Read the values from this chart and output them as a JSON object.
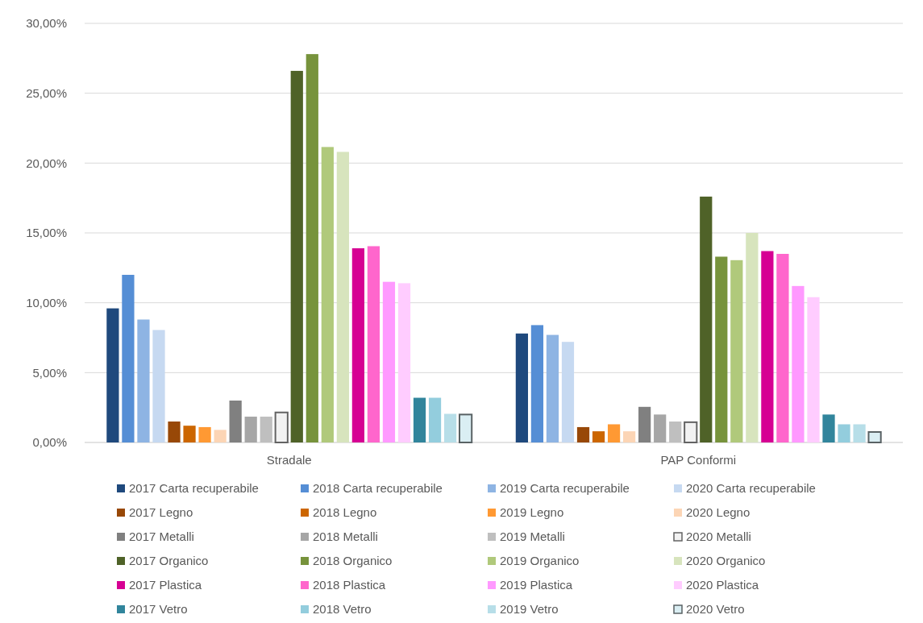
{
  "chart_data": {
    "type": "bar",
    "categories": [
      "Stradale",
      "PAP Conformi"
    ],
    "ylim": [
      0,
      30
    ],
    "yticks": [
      {
        "value": 0,
        "label": "0,00%"
      },
      {
        "value": 5,
        "label": "5,00%"
      },
      {
        "value": 10,
        "label": "10,00%"
      },
      {
        "value": 15,
        "label": "15,00%"
      },
      {
        "value": 20,
        "label": "20,00%"
      },
      {
        "value": 25,
        "label": "25,00%"
      },
      {
        "value": 30,
        "label": "30,00%"
      }
    ],
    "grid": "y",
    "legend": "bottom",
    "series": [
      {
        "name": "2017 Carta recuperabile",
        "color": "#1f497d",
        "values": [
          9.6,
          7.8
        ]
      },
      {
        "name": "2018 Carta recuperabile",
        "color": "#558ed5",
        "values": [
          12.0,
          8.4
        ]
      },
      {
        "name": "2019 Carta recuperabile",
        "color": "#8eb4e3",
        "values": [
          8.8,
          7.7
        ]
      },
      {
        "name": "2020 Carta recuperabile",
        "color": "#c6d9f1",
        "values": [
          8.05,
          7.2
        ]
      },
      {
        "name": "2017 Legno",
        "color": "#984807",
        "values": [
          1.5,
          1.1
        ]
      },
      {
        "name": "2018 Legno",
        "color": "#cc6600",
        "values": [
          1.2,
          0.8
        ]
      },
      {
        "name": "2019 Legno",
        "color": "#ff9933",
        "values": [
          1.1,
          1.3
        ]
      },
      {
        "name": "2020 Legno",
        "color": "#fcd5b5",
        "values": [
          0.9,
          0.8
        ]
      },
      {
        "name": "2017 Metalli",
        "color": "#808080",
        "values": [
          3.0,
          2.55
        ]
      },
      {
        "name": "2018 Metalli",
        "color": "#a6a6a6",
        "values": [
          1.85,
          2.0
        ]
      },
      {
        "name": "2019 Metalli",
        "color": "#bfbfbf",
        "values": [
          1.85,
          1.5
        ]
      },
      {
        "name": "2020 Metalli",
        "color": "#f2f2f2",
        "values": [
          2.15,
          1.45
        ]
      },
      {
        "name": "2017 Organico",
        "color": "#4f6228",
        "values": [
          26.6,
          17.6
        ]
      },
      {
        "name": "2018 Organico",
        "color": "#77933c",
        "values": [
          27.8,
          13.3
        ]
      },
      {
        "name": "2019 Organico",
        "color": "#b0c97b",
        "values": [
          21.15,
          13.05
        ]
      },
      {
        "name": "2020 Organico",
        "color": "#d7e4bd",
        "values": [
          20.8,
          15.0
        ]
      },
      {
        "name": "2017 Plastica",
        "color": "#d60093",
        "values": [
          13.9,
          13.7
        ]
      },
      {
        "name": "2018 Plastica",
        "color": "#ff66cc",
        "values": [
          14.05,
          13.5
        ]
      },
      {
        "name": "2019 Plastica",
        "color": "#ff99ff",
        "values": [
          11.5,
          11.2
        ]
      },
      {
        "name": "2020 Plastica",
        "color": "#ffccff",
        "values": [
          11.4,
          10.4
        ]
      },
      {
        "name": "2017 Vetro",
        "color": "#31859c",
        "values": [
          3.2,
          2.0
        ]
      },
      {
        "name": "2018 Vetro",
        "color": "#93cddd",
        "values": [
          3.2,
          1.3
        ]
      },
      {
        "name": "2019 Vetro",
        "color": "#b7dee8",
        "values": [
          2.05,
          1.3
        ]
      },
      {
        "name": "2020 Vetro",
        "color": "#daeef3",
        "values": [
          2.0,
          0.75
        ]
      }
    ]
  }
}
